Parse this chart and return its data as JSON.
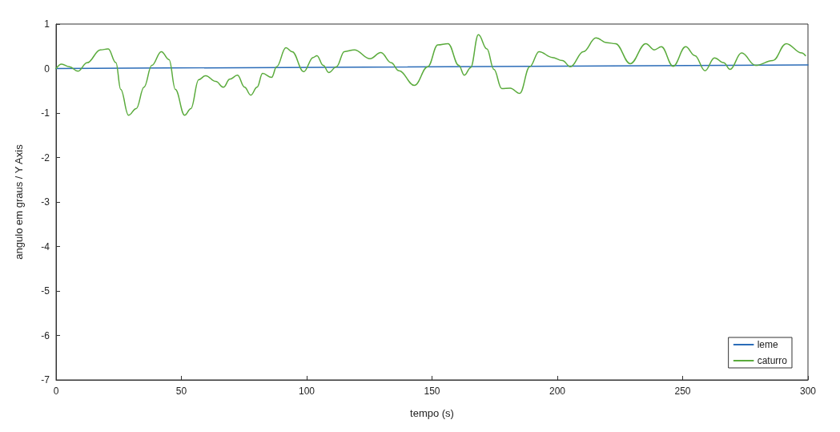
{
  "chart_data": {
    "type": "line",
    "xlabel": "tempo (s)",
    "ylabel": "angulo em graus / Y Axis",
    "xlim": [
      0,
      300
    ],
    "xticks": [
      0,
      50,
      100,
      150,
      200,
      250,
      300
    ],
    "ylim": [
      -7,
      1
    ],
    "yticks": [
      -7,
      -6,
      -5,
      -4,
      -3,
      -2,
      -1,
      0,
      1
    ],
    "grid": false,
    "legend": "bottom right",
    "marker": "none",
    "line_style": "solid",
    "series": [
      {
        "name": "leme",
        "color": "#2b6cb8",
        "x": [
          0,
          300
        ],
        "values": [
          0,
          0.08
        ]
      },
      {
        "name": "caturro",
        "color": "#5aab3c",
        "x": [
          0,
          2.2,
          5.3,
          8.7,
          12.4,
          17.7,
          20.8,
          23.9,
          25.8,
          28.9,
          32,
          35.1,
          38.2,
          42,
          45.1,
          47.6,
          51.3,
          53.8,
          56.9,
          59.7,
          63.7,
          66.8,
          69.3,
          72.4,
          75.2,
          77.7,
          80.2,
          82.4,
          86,
          88,
          91.7,
          94.2,
          98.8,
          102.6,
          104.1,
          106.6,
          108.8,
          111.9,
          115,
          119,
          125.3,
          129.6,
          133.7,
          136.8,
          143,
          148.3,
          152.3,
          156.4,
          160.7,
          162.9,
          165.4,
          168.5,
          171.9,
          174.7,
          177.8,
          181.2,
          185,
          189,
          192.7,
          198,
          202,
          205.2,
          210.4,
          215.4,
          219.8,
          223.2,
          229.1,
          235.3,
          238.7,
          241.5,
          246.2,
          251.2,
          254.9,
          258.9,
          262.7,
          266.4,
          268.9,
          273.5,
          279.1,
          286,
          291.3,
          297.5,
          299
        ],
        "values": [
          0,
          0.1,
          0.04,
          -0.06,
          0.13,
          0.42,
          0.44,
          0.13,
          -0.47,
          -1.05,
          -0.9,
          -0.42,
          0.07,
          0.38,
          0.2,
          -0.47,
          -1.05,
          -0.9,
          -0.25,
          -0.16,
          -0.29,
          -0.42,
          -0.24,
          -0.15,
          -0.42,
          -0.6,
          -0.42,
          -0.11,
          -0.2,
          0.04,
          0.47,
          0.38,
          -0.07,
          0.25,
          0.29,
          0.07,
          -0.09,
          0.04,
          0.38,
          0.42,
          0.22,
          0.36,
          0.13,
          -0.05,
          -0.38,
          0.04,
          0.53,
          0.56,
          0.07,
          -0.15,
          0.02,
          0.76,
          0.44,
          -0.02,
          -0.45,
          -0.44,
          -0.56,
          0.04,
          0.38,
          0.25,
          0.18,
          0.04,
          0.38,
          0.69,
          0.58,
          0.56,
          0.11,
          0.56,
          0.42,
          0.49,
          0.05,
          0.49,
          0.29,
          -0.05,
          0.24,
          0.13,
          -0.02,
          0.35,
          0.07,
          0.18,
          0.56,
          0.35,
          0.29
        ]
      }
    ]
  }
}
